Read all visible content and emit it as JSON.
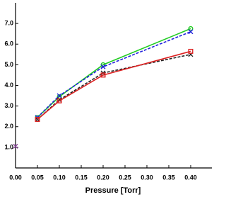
{
  "chart_data": {
    "type": "line",
    "x_label": "Pressure [Torr]",
    "xlim": [
      0,
      0.45
    ],
    "ylim": [
      0,
      8
    ],
    "xticks": [
      {
        "value": 0,
        "label": "0.00"
      },
      {
        "value": 0.05,
        "label": "0.05"
      },
      {
        "value": 0.1,
        "label": "0.10"
      },
      {
        "value": 0.15,
        "label": "0.15"
      },
      {
        "value": 0.2,
        "label": "0.20"
      },
      {
        "value": 0.25,
        "label": "0.25"
      },
      {
        "value": 0.3,
        "label": "0.30"
      },
      {
        "value": 0.35,
        "label": "0.35"
      },
      {
        "value": 0.4,
        "label": "0.40"
      }
    ],
    "yticks": [
      {
        "value": 1,
        "label": "1.0"
      },
      {
        "value": 2,
        "label": "2.0"
      },
      {
        "value": 3,
        "label": "3.0"
      },
      {
        "value": 4,
        "label": "4.0"
      },
      {
        "value": 5,
        "label": "5.0"
      },
      {
        "value": 6,
        "label": "6.0"
      },
      {
        "value": 7,
        "label": "7.0"
      }
    ],
    "series": [
      {
        "color": "#22cc22",
        "x": [
          0.05,
          0.1,
          0.2,
          0.4
        ],
        "values": [
          2.45,
          3.45,
          5.0,
          6.75
        ],
        "dash": false,
        "marker": "circle"
      },
      {
        "color": "#2222dd",
        "x": [
          0.05,
          0.1,
          0.2,
          0.4
        ],
        "values": [
          2.45,
          3.5,
          4.9,
          6.6
        ],
        "dash": true,
        "marker": "cross"
      },
      {
        "color": "#222222",
        "x": [
          0.05,
          0.1,
          0.2,
          0.4
        ],
        "values": [
          2.35,
          3.3,
          4.6,
          5.5
        ],
        "dash": true,
        "marker": "cross"
      },
      {
        "color": "#dd2222",
        "x": [
          0.05,
          0.1,
          0.2,
          0.4
        ],
        "values": [
          2.35,
          3.25,
          4.5,
          5.65
        ],
        "dash": false,
        "marker": "square"
      },
      {
        "color": "#884499",
        "x": [
          0
        ],
        "values": [
          1.05
        ],
        "dash": false,
        "marker": "cross"
      }
    ]
  }
}
